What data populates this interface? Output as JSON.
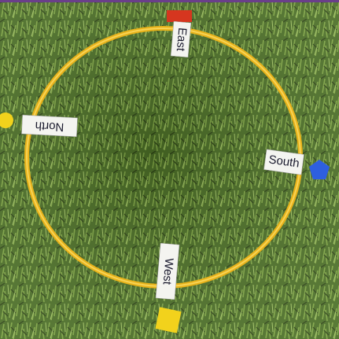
{
  "labels": [
    {
      "text": "East"
    },
    {
      "text": "North"
    },
    {
      "text": "South"
    },
    {
      "text": "West"
    }
  ]
}
